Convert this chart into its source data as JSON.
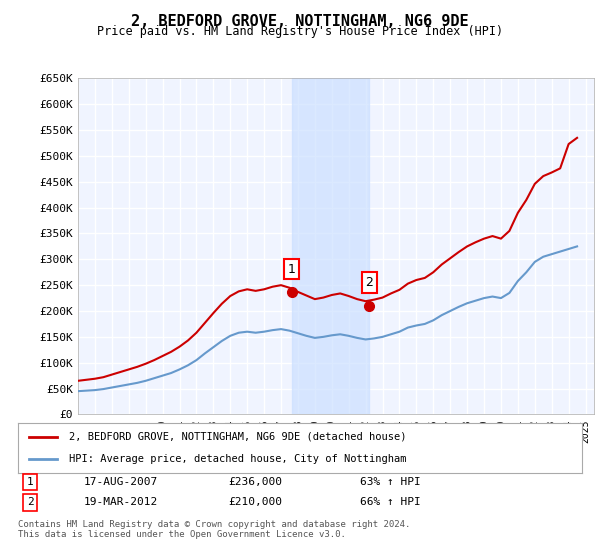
{
  "title": "2, BEDFORD GROVE, NOTTINGHAM, NG6 9DE",
  "subtitle": "Price paid vs. HM Land Registry's House Price Index (HPI)",
  "ylabel_ticks": [
    "£0",
    "£50K",
    "£100K",
    "£150K",
    "£200K",
    "£250K",
    "£300K",
    "£350K",
    "£400K",
    "£450K",
    "£500K",
    "£550K",
    "£600K",
    "£650K"
  ],
  "ytick_values": [
    0,
    50000,
    100000,
    150000,
    200000,
    250000,
    300000,
    350000,
    400000,
    450000,
    500000,
    550000,
    600000,
    650000
  ],
  "background_color": "#ffffff",
  "plot_bg_color": "#f0f4ff",
  "grid_color": "#ffffff",
  "sale1_date": 2007.63,
  "sale1_price": 236000,
  "sale1_label": "1",
  "sale2_date": 2012.22,
  "sale2_price": 210000,
  "sale2_label": "2",
  "hpi_line_color": "#6699cc",
  "price_line_color": "#cc0000",
  "sale_marker_color": "#cc0000",
  "highlight_color": "#cce0ff",
  "legend_price_label": "2, BEDFORD GROVE, NOTTINGHAM, NG6 9DE (detached house)",
  "legend_hpi_label": "HPI: Average price, detached house, City of Nottingham",
  "table_row1": [
    "1",
    "17-AUG-2007",
    "£236,000",
    "63% ↑ HPI"
  ],
  "table_row2": [
    "2",
    "19-MAR-2012",
    "£210,000",
    "66% ↑ HPI"
  ],
  "footer": "Contains HM Land Registry data © Crown copyright and database right 2024.\nThis data is licensed under the Open Government Licence v3.0.",
  "xmin": 1995,
  "xmax": 2025.5,
  "ymin": 0,
  "ymax": 650000
}
